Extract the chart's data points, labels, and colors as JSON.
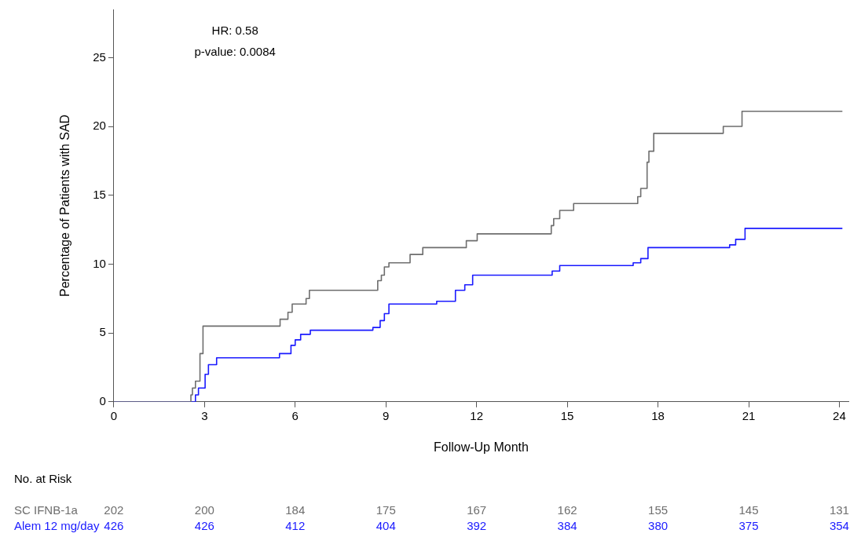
{
  "chart_data": {
    "type": "step",
    "xlabel": "Follow-Up Month",
    "ylabel": "Percentage of Patients with SAD",
    "xlim": [
      0,
      24.3
    ],
    "xticks": [
      0,
      3,
      6,
      9,
      12,
      15,
      18,
      21,
      24
    ],
    "ylim": [
      0,
      28.5
    ],
    "yticks": [
      0,
      5,
      10,
      15,
      20,
      25
    ],
    "grid": false,
    "legend": false,
    "marker": "none",
    "line_style": "solid",
    "series": [
      {
        "name": "SC IFNB-1a",
        "color": "#6e6e6e",
        "x": [
          0,
          2.55,
          2.6,
          2.7,
          2.85,
          2.95,
          5.5,
          5.76,
          5.9,
          6.36,
          6.47,
          8.73,
          8.85,
          8.95,
          9.1,
          9.8,
          10.22,
          11.66,
          12.02,
          14.47,
          14.55,
          14.75,
          15.21,
          17.33,
          17.43,
          17.64,
          17.7,
          17.86,
          20.16,
          20.78,
          24.1
        ],
        "values": [
          0,
          0.5,
          1.0,
          1.5,
          3.5,
          5.5,
          6.0,
          6.5,
          7.1,
          7.5,
          8.1,
          8.8,
          9.2,
          9.8,
          10.1,
          10.7,
          11.2,
          11.7,
          12.2,
          12.8,
          13.3,
          13.9,
          14.4,
          14.9,
          15.5,
          17.4,
          18.2,
          19.5,
          20.0,
          21.1,
          21.1
        ]
      },
      {
        "name": "Alem 12 mg/day",
        "color": "#1a1aff",
        "x": [
          0,
          2.7,
          2.8,
          3.02,
          3.13,
          3.4,
          5.48,
          5.86,
          6.0,
          6.18,
          6.5,
          8.57,
          8.81,
          8.95,
          9.1,
          10.68,
          11.3,
          11.61,
          11.87,
          14.5,
          14.75,
          17.18,
          17.43,
          17.67,
          20.37,
          20.57,
          20.88,
          24.1
        ],
        "values": [
          0,
          0.5,
          1.0,
          2.0,
          2.7,
          3.2,
          3.5,
          4.1,
          4.5,
          4.9,
          5.2,
          5.4,
          5.9,
          6.4,
          7.1,
          7.3,
          8.1,
          8.5,
          9.2,
          9.5,
          9.9,
          10.1,
          10.4,
          11.2,
          11.4,
          11.8,
          12.6,
          12.6
        ]
      }
    ],
    "annotations": [
      "HR: 0.58",
      "p-value: 0.0084",
      "No. at Risk",
      "202",
      "200",
      "184",
      "175",
      "167",
      "162",
      "155",
      "145",
      "131",
      "426",
      "426",
      "412",
      "404",
      "392",
      "384",
      "380",
      "375",
      "354"
    ]
  }
}
